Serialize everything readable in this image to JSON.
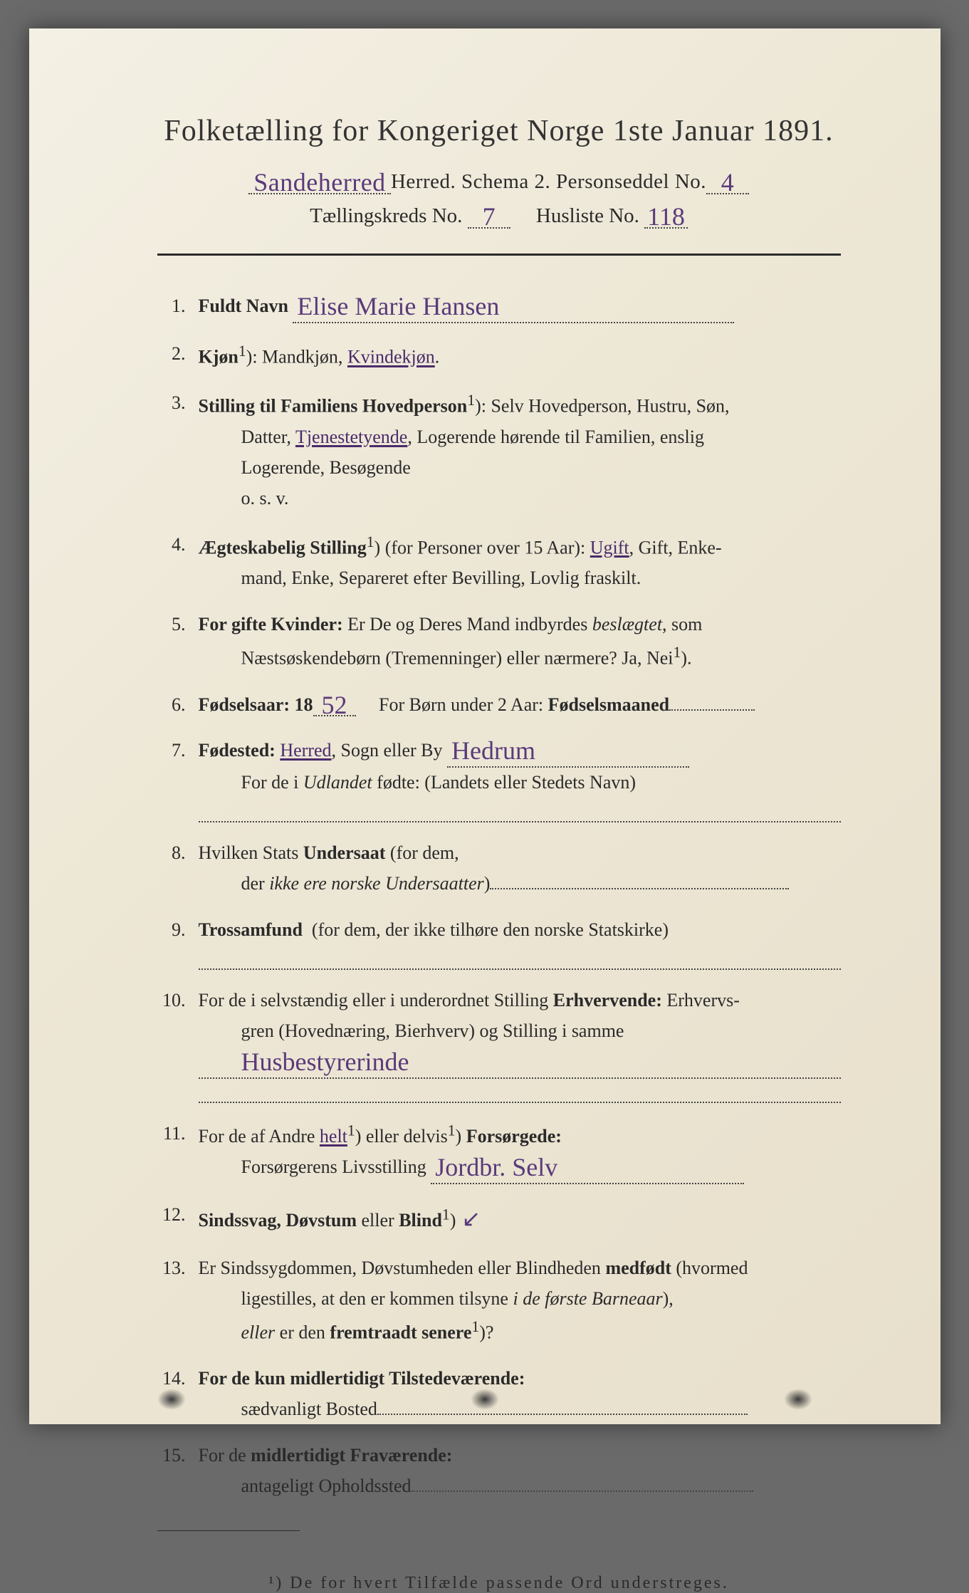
{
  "header": {
    "title": "Folketælling for Kongeriget Norge 1ste Januar 1891.",
    "herred_hw": "Sandeherred",
    "line2_static": "Herred.   Schema 2.   Personseddel No.",
    "personseddel_no": "4",
    "line3_prefix": "Tællingskreds No.",
    "taellingskreds_no": "7",
    "line3_mid": "Husliste No.",
    "husliste_no": "118"
  },
  "items": [
    {
      "n": "1.",
      "label_bold": "Fuldt Navn",
      "handwritten": "Elise Marie Hansen"
    },
    {
      "n": "2.",
      "html": "<span class='bold'>Kjøn</span><sup>1</sup>): Mandkjøn, <span class='underline'>Kvindekjøn</span>."
    },
    {
      "n": "3.",
      "html": "<span class='bold'>Stilling til Familiens Hovedperson</span><sup>1</sup>): Selv Hovedperson, Hustru, Søn,<br><span class='indent'>Datter, <span class='underline'>Tjenestetyende</span>, Logerende hørende til Familien, enslig</span><span class='indent'>Logerende, Besøgende</span><span class='indent'>o. s. v.</span>"
    },
    {
      "n": "4.",
      "html": "<span class='bold'>Ægteskabelig Stilling</span><sup>1</sup>) (for Personer over 15 Aar): <span class='underline'>Ugift</span>, Gift, Enke-<br><span class='indent'>mand, Enke, Separeret efter Bevilling, Lovlig fraskilt.</span>"
    },
    {
      "n": "5.",
      "html": "<span class='bold'>For gifte Kvinder:</span> Er De og Deres Mand indbyrdes <i>beslægtet</i>, som<br><span class='indent'>Næstsøskendebørn (Tremenninger) eller nærmere?  Ja, Nei<sup>1</sup>).</span>"
    },
    {
      "n": "6.",
      "html_parts": {
        "prefix": "Fødselsaar: 18",
        "year_hw": "52",
        "mid": "For Børn under 2 Aar:",
        "suffix_bold": "Fødselsmaaned"
      }
    },
    {
      "n": "7.",
      "html_parts7": {
        "prefix_bold": "Fødested:",
        "underlined": "Herred",
        "mid": ", Sogn eller By",
        "place_hw": "Hedrum",
        "line2": "For de i <i>Udlandet</i> fødte: (Landets eller Stedets Navn)"
      }
    },
    {
      "n": "8.",
      "html": "Hvilken Stats <span class='bold'>Undersaat</span> (for dem,<br><span class='indent'>der <i>ikke ere norske Undersaatter</i>)<span class='dotted-long' style='min-width:420px'></span></span>"
    },
    {
      "n": "9.",
      "html": "<span class='bold'>Trossamfund</span> &nbsp;(for dem, der ikke tilhøre den norske Statskirke)<span class='dotted-full'></span>"
    },
    {
      "n": "10.",
      "html_parts10": {
        "line1": "For de i selvstændig eller i underordnet Stilling <span class='bold'>Erhvervende:</span> Erhvervs-",
        "line2": "gren (Hovednæring, Bierhverv) og Stilling i samme",
        "hw": "Husbestyrerinde"
      }
    },
    {
      "n": "11.",
      "html_parts11": {
        "line1": "For de af Andre <span class='underline'>helt</span><sup>1</sup>) eller delvis<sup>1</sup>) <span class='bold'>Forsørgede:</span>",
        "line2_prefix": "Forsørgerens Livsstilling",
        "hw": "Jordbr. Selv"
      }
    },
    {
      "n": "12.",
      "html": "<span class='bold'>Sindssvag, Døvstum</span> eller <span class='bold'>Blind</span><sup>1</sup>)<span class='hw-small'>&nbsp;&#8601;</span>"
    },
    {
      "n": "13.",
      "html": "Er Sindssygdommen, Døvstumheden eller Blindheden <span class='bold'>medfødt</span> (hvormed<br><span class='indent'>ligestilles, at den er kommen tilsyne <i>i de første Barneaar</i>),</span><span class='indent'><i>eller</i> er den <span class='bold'>fremtraadt senere</span><sup>1</sup>)?</span>"
    },
    {
      "n": "14.",
      "html": "<span class='bold'>For de kun midlertidigt Tilstedeværende:</span><br><span class='indent'>sædvanligt Bosted<span class='dotted-long' style='min-width:520px'></span></span>"
    },
    {
      "n": "15.",
      "html": "For de <span class='bold'>midlertidigt Fraværende:</span><br><span class='indent'>antageligt Opholdssted<span class='dotted-long' style='min-width:480px'></span></span>"
    }
  ],
  "footnote": "¹) De for hvert Tilfælde passende Ord understreges.",
  "colors": {
    "paper": "#ede7d6",
    "ink": "#2a2a2a",
    "handwriting": "#5a3a7a",
    "background": "#6a6a6a"
  }
}
